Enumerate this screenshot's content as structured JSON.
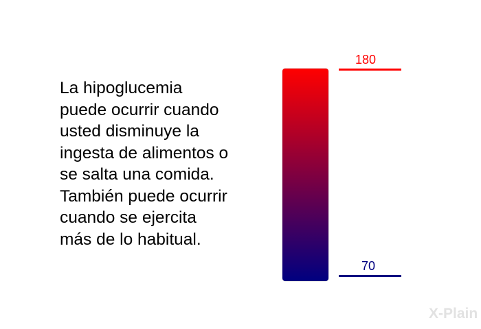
{
  "text_lines": [
    "La hipoglucemia",
    "puede ocurrir cuando",
    "usted disminuye la",
    "ingesta de alimentos o",
    "se salta una comida.",
    "También puede ocurrir",
    "cuando se ejercita",
    "más de lo habitual."
  ],
  "gauge": {
    "high_label": "180",
    "low_label": "70",
    "high_color": "#ff0000",
    "low_color": "#000080"
  },
  "logo": "X-Plain"
}
